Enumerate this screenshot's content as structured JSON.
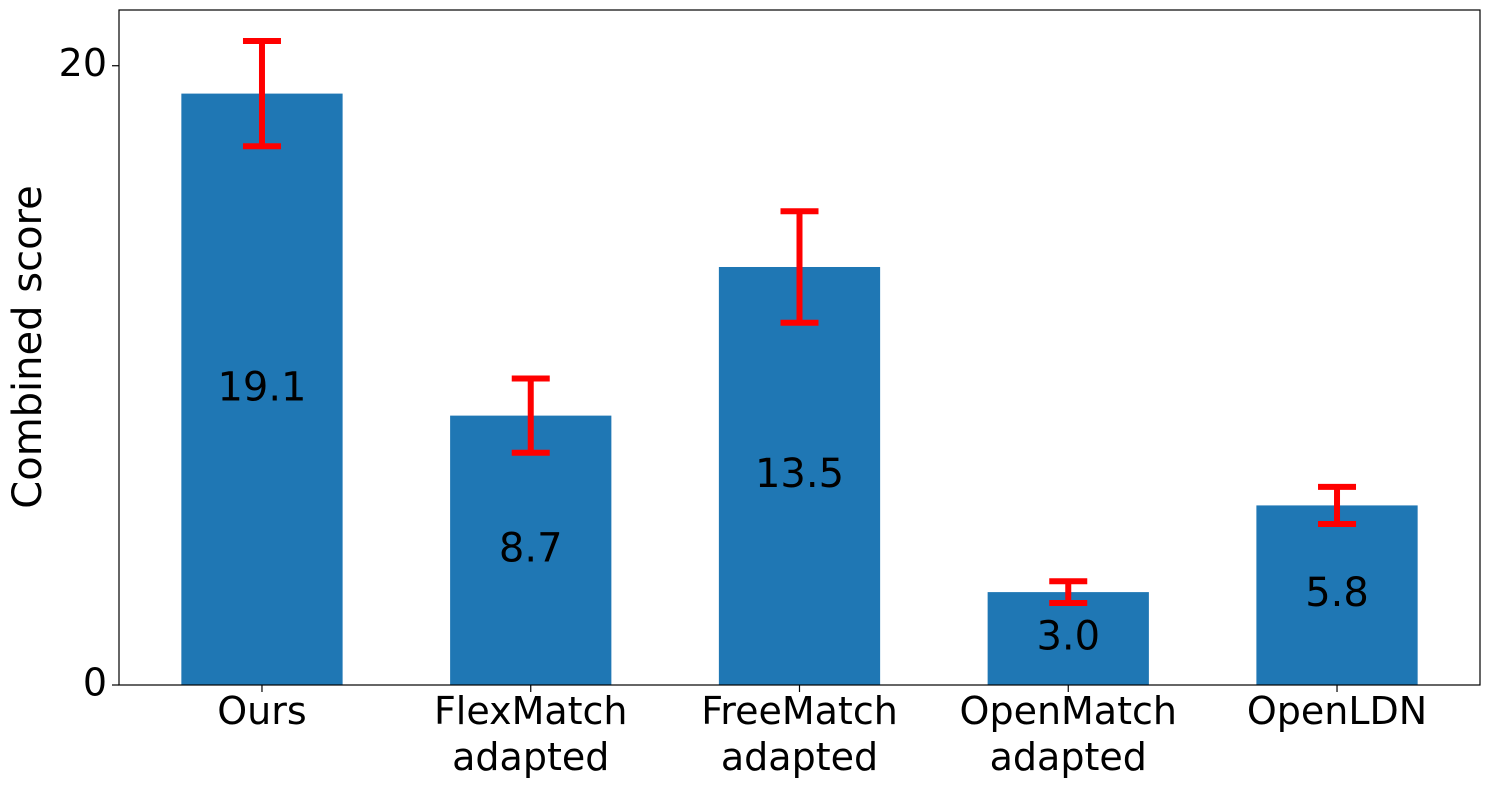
{
  "chart_data": {
    "type": "bar",
    "categories": [
      "Ours",
      "FlexMatch\nadapted",
      "FreeMatch\nadapted",
      "OpenMatch\nadapted",
      "OpenLDN"
    ],
    "values": [
      19.1,
      8.7,
      13.5,
      3.0,
      5.8
    ],
    "value_labels": [
      "19.1",
      "8.7",
      "13.5",
      "3.0",
      "5.8"
    ],
    "errors": [
      1.7,
      1.2,
      1.8,
      0.35,
      0.6
    ],
    "color": "#1f77b4",
    "error_color": "#ff0000",
    "y_label": "Combined score",
    "ylim": [
      0,
      21.8
    ],
    "yticks": [
      0,
      20
    ]
  }
}
